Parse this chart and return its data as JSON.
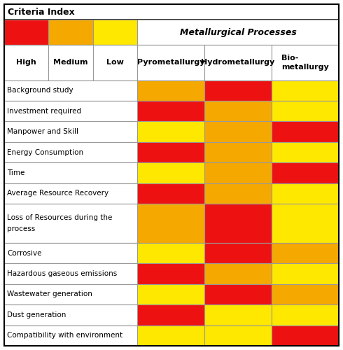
{
  "title": "Criteria Index",
  "subtitle": "Metallurgical Processes",
  "legend_labels": [
    "High",
    "Medium",
    "Low"
  ],
  "legend_colors": [
    "#EE1111",
    "#F5A800",
    "#FFE800"
  ],
  "col_headers": [
    "Pyrometallurgy",
    "Hydrometallurgy",
    "Bio-\nmetallurgy"
  ],
  "row_labels": [
    "Background study",
    "Investment required",
    "Manpower and Skill",
    "Energy Consumption",
    "Time",
    "Average Resource Recovery",
    "Loss of Resources during the\n\nprocess",
    "Corrosive",
    "Hazardous gaseous emissions",
    "Wastewater generation",
    "Dust generation",
    "Compatibility with environment"
  ],
  "cell_colors": [
    [
      "#F5A800",
      "#EE1111",
      "#FFE800"
    ],
    [
      "#EE1111",
      "#F5A800",
      "#FFE800"
    ],
    [
      "#FFE800",
      "#F5A800",
      "#EE1111"
    ],
    [
      "#EE1111",
      "#F5A800",
      "#FFE800"
    ],
    [
      "#FFE800",
      "#F5A800",
      "#EE1111"
    ],
    [
      "#EE1111",
      "#F5A800",
      "#FFE800"
    ],
    [
      "#F5A800",
      "#EE1111",
      "#FFE800"
    ],
    [
      "#FFE800",
      "#EE1111",
      "#F5A800"
    ],
    [
      "#EE1111",
      "#F5A800",
      "#FFE800"
    ],
    [
      "#FFE800",
      "#EE1111",
      "#F5A800"
    ],
    [
      "#EE1111",
      "#FFE800",
      "#FFE800"
    ],
    [
      "#FFE800",
      "#FFE800",
      "#EE1111"
    ]
  ],
  "background_color": "#FFFFFF",
  "border_color": "#999999",
  "text_color": "#000000",
  "outer_border_color": "#000000"
}
